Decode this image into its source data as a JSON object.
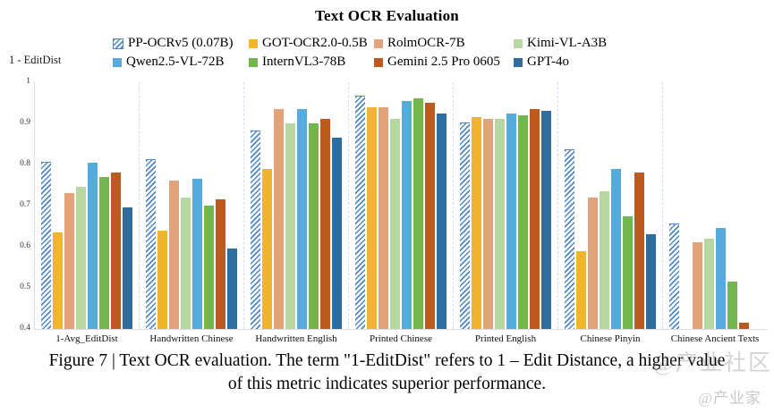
{
  "figure": {
    "title": "Text OCR Evaluation",
    "y_axis_label": "1 - EditDist",
    "caption_line1": "Figure 7 | Text OCR evaluation. The term \"1-EditDist\" refers to 1 – Edit Distance, a higher value",
    "caption_line2": "of this metric indicates superior performance.",
    "watermark_overlay": "@产业社区",
    "watermark_corner": "@产业家"
  },
  "chart_data": {
    "type": "bar",
    "title": "Text OCR Evaluation",
    "xlabel": "",
    "ylabel": "1 - EditDist",
    "ylim": [
      0.4,
      1.0
    ],
    "y_ticks": [
      "1",
      "0.9",
      "0.8",
      "0.7",
      "0.6",
      "0.5",
      "0.4"
    ],
    "grid": false,
    "legend_position": "top",
    "legend_columns": 4,
    "categories": [
      "1-Avg_EditDist",
      "Handwritten Chinese",
      "Handwritten English",
      "Printed Chinese",
      "Printed English",
      "Chinese Pinyin",
      "Chinese Ancient Texts"
    ],
    "series": [
      {
        "name": "PP-OCRv5 (0.07B)",
        "color": "#4f86c5",
        "hatched": true,
        "values": [
          0.805,
          0.81,
          0.88,
          0.965,
          0.9,
          0.835,
          0.655
        ]
      },
      {
        "name": "GOT-OCR2.0-0.5B",
        "color": "#f0b42f",
        "hatched": false,
        "values": [
          0.635,
          0.64,
          0.79,
          0.94,
          0.915,
          0.59,
          null
        ]
      },
      {
        "name": "RolmOCR-7B",
        "color": "#e2a27a",
        "hatched": false,
        "values": [
          0.73,
          0.76,
          0.935,
          0.94,
          0.91,
          0.72,
          0.61
        ]
      },
      {
        "name": "Kimi-VL-A3B",
        "color": "#b6d7a0",
        "hatched": false,
        "values": [
          0.745,
          0.72,
          0.9,
          0.91,
          0.91,
          0.735,
          0.62
        ]
      },
      {
        "name": "Qwen2.5-VL-72B",
        "color": "#55aade",
        "hatched": false,
        "values": [
          0.805,
          0.765,
          0.935,
          0.955,
          0.925,
          0.79,
          0.645
        ]
      },
      {
        "name": "InternVL3-78B",
        "color": "#74b64e",
        "hatched": false,
        "values": [
          0.77,
          0.7,
          0.9,
          0.96,
          0.92,
          0.675,
          0.515
        ]
      },
      {
        "name": "Gemini 2.5 Pro 0605",
        "color": "#bd5a1f",
        "hatched": false,
        "values": [
          0.78,
          0.715,
          0.91,
          0.95,
          0.935,
          0.78,
          0.415
        ]
      },
      {
        "name": "GPT-4o",
        "color": "#2f6d9e",
        "hatched": false,
        "values": [
          0.695,
          0.595,
          0.865,
          0.925,
          0.93,
          0.63,
          null
        ]
      }
    ]
  }
}
